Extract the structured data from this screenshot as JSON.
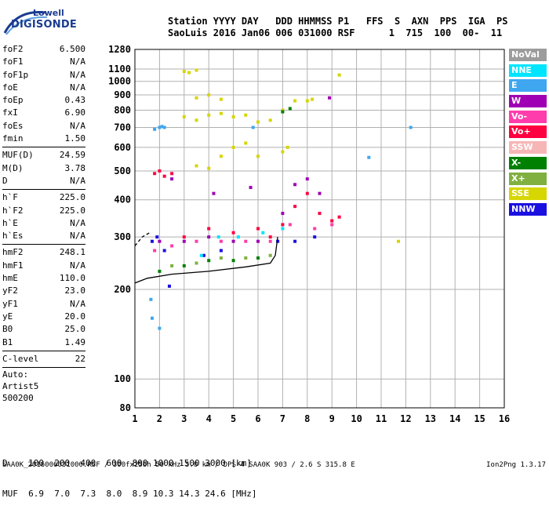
{
  "logo": {
    "top": "Lowell",
    "bottom": "DIGISONDE"
  },
  "header": {
    "line1": "Station YYYY DAY   DDD HHMMSS P1   FFS  S  AXN  PPS  IGA  PS",
    "line2": "SaoLuis 2016 Jan06 006 031000 RSF      1  715  100  00-  11"
  },
  "params": {
    "group1": [
      {
        "k": "foF2",
        "v": "6.500"
      },
      {
        "k": "foF1",
        "v": "N/A"
      },
      {
        "k": "foF1p",
        "v": "N/A"
      },
      {
        "k": "foE",
        "v": "N/A"
      },
      {
        "k": "foEp",
        "v": "0.43"
      },
      {
        "k": "fxI",
        "v": "6.90"
      },
      {
        "k": "foEs",
        "v": "N/A"
      },
      {
        "k": "fmin",
        "v": "1.50"
      }
    ],
    "group2": [
      {
        "k": "MUF(D)",
        "v": "24.59"
      },
      {
        "k": "M(D)",
        "v": "3.78"
      },
      {
        "k": "D",
        "v": "N/A"
      }
    ],
    "group3": [
      {
        "k": "h`F",
        "v": "225.0"
      },
      {
        "k": "h`F2",
        "v": "225.0"
      },
      {
        "k": "h`E",
        "v": "N/A"
      },
      {
        "k": "h`Es",
        "v": "N/A"
      }
    ],
    "group4": [
      {
        "k": "hmF2",
        "v": "248.1"
      },
      {
        "k": "hmF1",
        "v": "N/A"
      },
      {
        "k": "hmE",
        "v": "110.0"
      },
      {
        "k": "yF2",
        "v": "23.0"
      },
      {
        "k": "yF1",
        "v": "N/A"
      },
      {
        "k": "yE",
        "v": "20.0"
      },
      {
        "k": "B0",
        "v": "25.0"
      },
      {
        "k": "B1",
        "v": "1.49"
      }
    ],
    "clevel": {
      "k": "C-level",
      "v": "22"
    },
    "auto": [
      "Auto:",
      "Artist5",
      "500200"
    ]
  },
  "legend": [
    {
      "label": "NoVal",
      "color": "#9c9c9c"
    },
    {
      "label": "NNE",
      "color": "#00e5ff"
    },
    {
      "label": "E",
      "color": "#3fa6f0"
    },
    {
      "label": "W",
      "color": "#a000b4"
    },
    {
      "label": "Vo-",
      "color": "#ff3cac"
    },
    {
      "label": "Vo+",
      "color": "#ff0040"
    },
    {
      "label": "SSW",
      "color": "#f7b6b6"
    },
    {
      "label": "X-",
      "color": "#008000"
    },
    {
      "label": "X+",
      "color": "#80b040"
    },
    {
      "label": "SSE",
      "color": "#d6d600"
    },
    {
      "label": "NNW",
      "color": "#1a10e0"
    }
  ],
  "muf_table": {
    "line1": "D    100  200  400  600  800 1000 1500 3000 [km]",
    "line2": "MUF  6.9  7.0  7.3  8.0  8.9 10.3 14.3 24.6 [MHz]"
  },
  "footer": {
    "left": "SAA0K_2016006031000.RSF / 300fx256h 50 kHz 5.0 km / DPS-4 SAA0K 903 / 2.6 S 315.8 E",
    "right": "Ion2Png 1.3.17"
  },
  "chart_data": {
    "type": "scatter",
    "title": "",
    "xlabel": "",
    "ylabel": "",
    "xlim": [
      1,
      16
    ],
    "ylim": [
      80,
      1280
    ],
    "y_scale": "log",
    "x_ticks": [
      1,
      2,
      3,
      4,
      5,
      6,
      7,
      8,
      9,
      10,
      11,
      12,
      13,
      14,
      15,
      16
    ],
    "y_ticks": [
      80,
      100,
      200,
      300,
      400,
      500,
      600,
      700,
      800,
      900,
      1000,
      1100,
      1280
    ],
    "grid": true,
    "series": [
      {
        "name": "E",
        "color": "#3fa6f0",
        "points": [
          [
            1.8,
            690
          ],
          [
            2.0,
            700
          ],
          [
            2.1,
            705
          ],
          [
            2.2,
            700
          ],
          [
            5.8,
            700
          ],
          [
            10.5,
            555
          ],
          [
            12.2,
            700
          ],
          [
            2.0,
            148
          ],
          [
            1.65,
            185
          ],
          [
            1.7,
            160
          ]
        ]
      },
      {
        "name": "SSE",
        "color": "#d6d600",
        "points": [
          [
            3.0,
            1080
          ],
          [
            3.2,
            1070
          ],
          [
            3.5,
            1090
          ],
          [
            3.5,
            880
          ],
          [
            4.0,
            900
          ],
          [
            4.5,
            870
          ],
          [
            3.0,
            760
          ],
          [
            3.5,
            740
          ],
          [
            4.0,
            770
          ],
          [
            4.5,
            780
          ],
          [
            5.0,
            760
          ],
          [
            5.5,
            770
          ],
          [
            6.0,
            730
          ],
          [
            6.5,
            740
          ],
          [
            7.0,
            800
          ],
          [
            7.5,
            860
          ],
          [
            8.0,
            860
          ],
          [
            8.2,
            870
          ],
          [
            3.5,
            520
          ],
          [
            4.0,
            510
          ],
          [
            4.5,
            560
          ],
          [
            5.0,
            600
          ],
          [
            5.5,
            620
          ],
          [
            6.0,
            560
          ],
          [
            7.0,
            580
          ],
          [
            7.2,
            600
          ],
          [
            9.3,
            1050
          ],
          [
            11.7,
            290
          ]
        ]
      },
      {
        "name": "Vo+",
        "color": "#ff0040",
        "points": [
          [
            1.8,
            490
          ],
          [
            2.0,
            500
          ],
          [
            2.2,
            480
          ],
          [
            2.5,
            490
          ],
          [
            3.0,
            300
          ],
          [
            4.0,
            320
          ],
          [
            5.0,
            310
          ],
          [
            6.0,
            320
          ],
          [
            6.5,
            300
          ],
          [
            7.0,
            330
          ],
          [
            7.5,
            380
          ],
          [
            8.0,
            420
          ],
          [
            8.5,
            360
          ],
          [
            9.0,
            340
          ],
          [
            9.3,
            350
          ]
        ]
      },
      {
        "name": "W",
        "color": "#a000b4",
        "points": [
          [
            2.0,
            290
          ],
          [
            3.0,
            290
          ],
          [
            4.0,
            300
          ],
          [
            5.0,
            290
          ],
          [
            6.0,
            290
          ],
          [
            7.0,
            360
          ],
          [
            7.5,
            450
          ],
          [
            8.0,
            470
          ],
          [
            8.5,
            420
          ],
          [
            5.7,
            440
          ],
          [
            4.2,
            420
          ],
          [
            2.5,
            470
          ],
          [
            8.9,
            880
          ]
        ]
      },
      {
        "name": "Vo-",
        "color": "#ff3cac",
        "points": [
          [
            1.8,
            270
          ],
          [
            2.5,
            280
          ],
          [
            3.5,
            290
          ],
          [
            4.5,
            290
          ],
          [
            5.5,
            290
          ],
          [
            6.5,
            290
          ],
          [
            7.3,
            330
          ],
          [
            8.3,
            320
          ],
          [
            9.0,
            330
          ]
        ]
      },
      {
        "name": "NNW",
        "color": "#1a10e0",
        "points": [
          [
            1.7,
            290
          ],
          [
            1.9,
            300
          ],
          [
            2.2,
            270
          ],
          [
            3.8,
            260
          ],
          [
            4.5,
            270
          ],
          [
            6.8,
            290
          ],
          [
            7.5,
            290
          ],
          [
            8.3,
            300
          ],
          [
            2.4,
            205
          ]
        ]
      },
      {
        "name": "X-",
        "color": "#008000",
        "points": [
          [
            2.0,
            230
          ],
          [
            3.0,
            240
          ],
          [
            4.0,
            250
          ],
          [
            5.0,
            250
          ],
          [
            6.0,
            255
          ],
          [
            7.0,
            790
          ],
          [
            7.3,
            810
          ]
        ]
      },
      {
        "name": "X+",
        "color": "#80b040",
        "points": [
          [
            2.5,
            240
          ],
          [
            3.5,
            245
          ],
          [
            4.5,
            255
          ],
          [
            5.5,
            255
          ],
          [
            6.5,
            260
          ]
        ]
      },
      {
        "name": "NNE",
        "color": "#00e5ff",
        "points": [
          [
            3.7,
            260
          ],
          [
            4.4,
            300
          ],
          [
            5.2,
            300
          ],
          [
            6.2,
            310
          ],
          [
            7.0,
            320
          ]
        ]
      }
    ],
    "trace_lines": [
      {
        "style": "solid",
        "points": [
          [
            1.0,
            210
          ],
          [
            1.5,
            218
          ],
          [
            2.5,
            225
          ],
          [
            4.0,
            230
          ],
          [
            5.5,
            238
          ],
          [
            6.5,
            245
          ],
          [
            6.7,
            260
          ],
          [
            6.8,
            300
          ]
        ]
      },
      {
        "style": "dashed",
        "points": [
          [
            1.0,
            280
          ],
          [
            1.3,
            300
          ],
          [
            1.6,
            310
          ]
        ]
      }
    ]
  }
}
